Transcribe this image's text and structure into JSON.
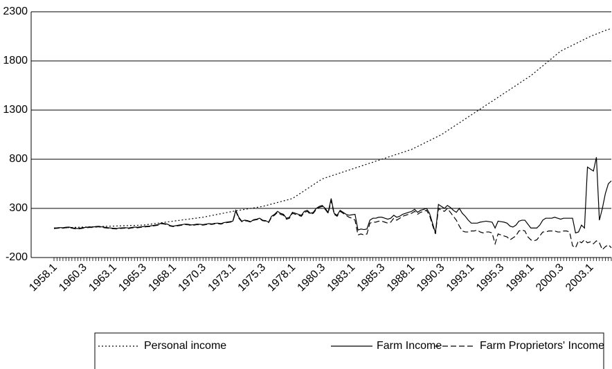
{
  "chart_data": {
    "type": "line",
    "categories": [
      "1958.1",
      null,
      null,
      null,
      null,
      null,
      null,
      null,
      null,
      null,
      "1960.3",
      null,
      null,
      null,
      null,
      null,
      null,
      null,
      null,
      null,
      "1963.1",
      null,
      null,
      null,
      null,
      null,
      null,
      null,
      null,
      null,
      "1965.3",
      null,
      null,
      null,
      null,
      null,
      null,
      null,
      null,
      null,
      "1968.1",
      null,
      null,
      null,
      null,
      null,
      null,
      null,
      null,
      null,
      "1970.3",
      null,
      null,
      null,
      null,
      null,
      null,
      null,
      null,
      null,
      "1973.1",
      null,
      null,
      null,
      null,
      null,
      null,
      null,
      null,
      null,
      "1975.3",
      null,
      null,
      null,
      null,
      null,
      null,
      null,
      null,
      null,
      "1978.1",
      null,
      null,
      null,
      null,
      null,
      null,
      null,
      null,
      null,
      "1980.3",
      null,
      null,
      null,
      null,
      null,
      null,
      null,
      null,
      null,
      "1983.1",
      null,
      null,
      null,
      null,
      null,
      null,
      null,
      null,
      null,
      "1985.3",
      null,
      null,
      null,
      null,
      null,
      null,
      null,
      null,
      null,
      "1988.1",
      null,
      null,
      null,
      null,
      null,
      null,
      null,
      null,
      null,
      "1990.3",
      null,
      null,
      null,
      null,
      null,
      null,
      null,
      null,
      null,
      "1993.1",
      null,
      null,
      null,
      null,
      null,
      null,
      null,
      null,
      null,
      "1995.3",
      null,
      null,
      null,
      null,
      null,
      null,
      null,
      null,
      null,
      "1998.1",
      null,
      null,
      null,
      null,
      null,
      null,
      null,
      null,
      null,
      "2000.3",
      null,
      null,
      null,
      null,
      null,
      null,
      null,
      null,
      null,
      "2003.1",
      null,
      null,
      null,
      null,
      null,
      null,
      null
    ],
    "series": [
      {
        "name": "Personal income",
        "color": "#000000",
        "dash": "dotted",
        "values": [
          100,
          101,
          102,
          103,
          104,
          105,
          106,
          107,
          108,
          109,
          110,
          111,
          112,
          113,
          114,
          115,
          116,
          117,
          118,
          119,
          120,
          121,
          122,
          123,
          124,
          125,
          126,
          127,
          128,
          129,
          130,
          134,
          138,
          142,
          146,
          150,
          154,
          158,
          162,
          166,
          170,
          174,
          178,
          182,
          186,
          190,
          194,
          198,
          202,
          206,
          210,
          216,
          222,
          228,
          234,
          240,
          246,
          252,
          258,
          264,
          270,
          275,
          280,
          285,
          290,
          295,
          300,
          305,
          310,
          315,
          320,
          328,
          336,
          344,
          352,
          360,
          368,
          376,
          384,
          392,
          400,
          420,
          440,
          460,
          480,
          500,
          520,
          540,
          560,
          580,
          600,
          610,
          620,
          630,
          640,
          650,
          660,
          670,
          680,
          690,
          700,
          710,
          720,
          730,
          740,
          750,
          760,
          770,
          780,
          790,
          800,
          810,
          820,
          830,
          840,
          850,
          860,
          870,
          880,
          890,
          900,
          915,
          930,
          945,
          960,
          975,
          990,
          1005,
          1020,
          1035,
          1050,
          1070,
          1090,
          1110,
          1130,
          1150,
          1170,
          1190,
          1210,
          1230,
          1250,
          1270,
          1290,
          1310,
          1330,
          1350,
          1370,
          1390,
          1410,
          1430,
          1450,
          1470,
          1490,
          1510,
          1530,
          1550,
          1570,
          1590,
          1610,
          1630,
          1650,
          1675,
          1700,
          1725,
          1750,
          1775,
          1800,
          1825,
          1850,
          1875,
          1900,
          1915,
          1930,
          1945,
          1960,
          1975,
          1990,
          2005,
          2020,
          2035,
          2050,
          2062,
          2074,
          2086,
          2098,
          2110,
          2120,
          2130
        ]
      },
      {
        "name": "Farm Income",
        "color": "#000000",
        "dash": "solid",
        "values": [
          100,
          102,
          105,
          103,
          108,
          110,
          104,
          98,
          95,
          100,
          105,
          108,
          112,
          110,
          115,
          118,
          112,
          108,
          104,
          100,
          98,
          96,
          100,
          102,
          104,
          100,
          106,
          110,
          108,
          112,
          115,
          118,
          120,
          125,
          130,
          135,
          150,
          145,
          140,
          125,
          120,
          125,
          130,
          135,
          140,
          138,
          132,
          135,
          140,
          138,
          135,
          140,
          145,
          142,
          148,
          150,
          145,
          155,
          160,
          165,
          170,
          280,
          210,
          170,
          180,
          175,
          165,
          185,
          190,
          200,
          180,
          175,
          160,
          220,
          240,
          270,
          250,
          240,
          200,
          210,
          260,
          250,
          240,
          230,
          270,
          280,
          250,
          260,
          300,
          320,
          330,
          300,
          260,
          400,
          250,
          230,
          280,
          260,
          240,
          230,
          235,
          240,
          80,
          90,
          85,
          90,
          180,
          200,
          200,
          210,
          210,
          200,
          190,
          200,
          230,
          210,
          220,
          240,
          250,
          260,
          270,
          290,
          260,
          280,
          290,
          300,
          250,
          150,
          50,
          340,
          320,
          300,
          330,
          310,
          280,
          260,
          300,
          250,
          220,
          180,
          150,
          150,
          150,
          160,
          165,
          170,
          165,
          160,
          100,
          170,
          165,
          160,
          150,
          120,
          110,
          130,
          170,
          180,
          180,
          140,
          100,
          100,
          100,
          130,
          180,
          200,
          200,
          200,
          210,
          200,
          190,
          200,
          200,
          200,
          200,
          50,
          60,
          130,
          100,
          720,
          700,
          680,
          820,
          180,
          300,
          450,
          550,
          580
        ]
      },
      {
        "name": "Farm Proprietors' Income",
        "color": "#000000",
        "dash": "dashed",
        "values": [
          95,
          97,
          100,
          98,
          103,
          105,
          99,
          93,
          90,
          95,
          100,
          103,
          107,
          105,
          110,
          113,
          107,
          103,
          99,
          95,
          93,
          91,
          95,
          97,
          99,
          95,
          101,
          105,
          103,
          107,
          110,
          113,
          115,
          120,
          125,
          130,
          145,
          140,
          135,
          120,
          115,
          120,
          125,
          130,
          135,
          133,
          127,
          130,
          135,
          133,
          130,
          135,
          140,
          137,
          143,
          145,
          140,
          150,
          155,
          160,
          165,
          270,
          200,
          165,
          175,
          170,
          160,
          180,
          185,
          195,
          175,
          170,
          155,
          210,
          230,
          260,
          240,
          230,
          190,
          200,
          250,
          240,
          230,
          220,
          260,
          270,
          240,
          250,
          290,
          310,
          320,
          290,
          250,
          380,
          240,
          220,
          270,
          250,
          230,
          210,
          200,
          180,
          30,
          40,
          30,
          40,
          150,
          160,
          160,
          170,
          170,
          160,
          150,
          160,
          200,
          180,
          200,
          220,
          230,
          240,
          250,
          270,
          240,
          260,
          270,
          280,
          230,
          130,
          40,
          300,
          280,
          270,
          300,
          260,
          220,
          180,
          120,
          70,
          60,
          60,
          70,
          70,
          80,
          60,
          50,
          60,
          60,
          50,
          -60,
          40,
          30,
          20,
          10,
          -20,
          0,
          20,
          70,
          80,
          70,
          10,
          -20,
          -30,
          -20,
          20,
          60,
          60,
          70,
          70,
          70,
          60,
          60,
          70,
          70,
          60,
          -80,
          -100,
          -30,
          -50,
          -20,
          -50,
          -40,
          -60,
          -30,
          -50,
          -120,
          -90,
          -70,
          -100
        ]
      }
    ],
    "ylim": [
      -200,
      2300
    ],
    "yticks": [
      -200,
      300,
      800,
      1300,
      1800,
      2300
    ],
    "grid": true,
    "legend": "bottom"
  }
}
